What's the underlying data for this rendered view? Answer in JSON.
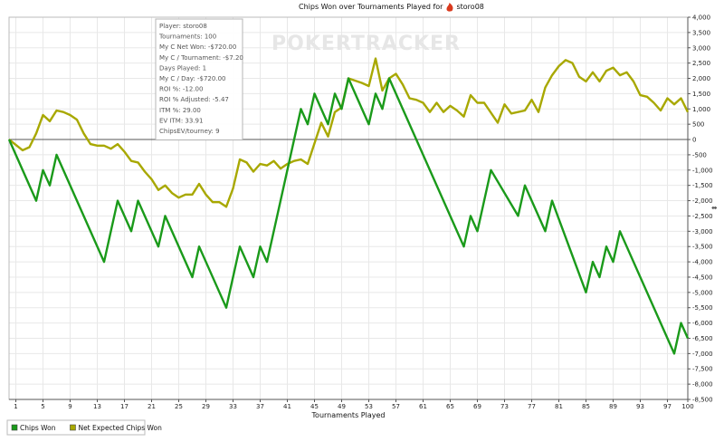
{
  "chart_data": {
    "type": "line",
    "title_prefix": "Chips Won over Tournaments Played for",
    "player": "storo08",
    "xlabel": "Tournaments Played",
    "ylabel": "",
    "xlim": [
      0,
      100
    ],
    "ylim": [
      -8500,
      4000
    ],
    "x_ticks": [
      1,
      5,
      9,
      13,
      17,
      21,
      25,
      29,
      33,
      37,
      41,
      45,
      49,
      53,
      57,
      61,
      65,
      69,
      73,
      77,
      81,
      85,
      89,
      93,
      97,
      100
    ],
    "y_ticks": [
      4000,
      3500,
      3000,
      2500,
      2000,
      1500,
      1000,
      500,
      0,
      -500,
      -1000,
      -1500,
      -2000,
      -2500,
      -3000,
      -3500,
      -4000,
      -4500,
      -5000,
      -5500,
      -6000,
      -6500,
      -7000,
      -7500,
      -8000,
      -8500
    ],
    "y_tick_labels": [
      "4,000",
      "3,500",
      "3,000",
      "2,500",
      "2,000",
      "1,500",
      "1,000",
      "500",
      "0",
      "-500",
      "-1,000",
      "-1,500",
      "-2,000",
      "-2,500",
      "-3,000",
      "-3,500",
      "-4,000",
      "-4,500",
      "-5,000",
      "-5,500",
      "-6,000",
      "-6,500",
      "-7,000",
      "-7,500",
      "-8,000",
      "-8,500"
    ],
    "grid": true,
    "legend_position": "bottom-left",
    "series": [
      {
        "name": "Chips Won",
        "color": "#1a9a1a",
        "points": [
          [
            0,
            0
          ],
          [
            4,
            -2000
          ],
          [
            5,
            -1000
          ],
          [
            6,
            -1500
          ],
          [
            7,
            -500
          ],
          [
            14,
            -4000
          ],
          [
            16,
            -2000
          ],
          [
            18,
            -3000
          ],
          [
            19,
            -2000
          ],
          [
            22,
            -3500
          ],
          [
            23,
            -2500
          ],
          [
            27,
            -4500
          ],
          [
            28,
            -3500
          ],
          [
            32,
            -5500
          ],
          [
            34,
            -3500
          ],
          [
            36,
            -4500
          ],
          [
            37,
            -3500
          ],
          [
            38,
            -4000
          ],
          [
            43,
            1000
          ],
          [
            44,
            500
          ],
          [
            45,
            1500
          ],
          [
            47,
            500
          ],
          [
            48,
            1500
          ],
          [
            49,
            1000
          ],
          [
            50,
            2000
          ],
          [
            53,
            500
          ],
          [
            54,
            1500
          ],
          [
            55,
            1000
          ],
          [
            56,
            2000
          ],
          [
            67,
            -3500
          ],
          [
            68,
            -2500
          ],
          [
            69,
            -3000
          ],
          [
            71,
            -1000
          ],
          [
            75,
            -2500
          ],
          [
            76,
            -1500
          ],
          [
            79,
            -3000
          ],
          [
            80,
            -2000
          ],
          [
            85,
            -5000
          ],
          [
            86,
            -4000
          ],
          [
            87,
            -4500
          ],
          [
            88,
            -3500
          ],
          [
            89,
            -4000
          ],
          [
            90,
            -3000
          ],
          [
            98,
            -7000
          ],
          [
            99,
            -6000
          ],
          [
            100,
            -6500
          ]
        ]
      },
      {
        "name": "Net Expected Chips Won",
        "color": "#a8a800",
        "points": [
          [
            0,
            0
          ],
          [
            2,
            -350
          ],
          [
            3,
            -250
          ],
          [
            4,
            200
          ],
          [
            5,
            800
          ],
          [
            6,
            600
          ],
          [
            7,
            950
          ],
          [
            8,
            900
          ],
          [
            9,
            800
          ],
          [
            10,
            650
          ],
          [
            11,
            200
          ],
          [
            12,
            -150
          ],
          [
            13,
            -200
          ],
          [
            14,
            -200
          ],
          [
            15,
            -300
          ],
          [
            16,
            -150
          ],
          [
            17,
            -400
          ],
          [
            18,
            -700
          ],
          [
            19,
            -750
          ],
          [
            20,
            -1050
          ],
          [
            21,
            -1300
          ],
          [
            22,
            -1650
          ],
          [
            23,
            -1500
          ],
          [
            24,
            -1750
          ],
          [
            25,
            -1900
          ],
          [
            26,
            -1800
          ],
          [
            27,
            -1800
          ],
          [
            28,
            -1450
          ],
          [
            29,
            -1800
          ],
          [
            30,
            -2050
          ],
          [
            31,
            -2050
          ],
          [
            32,
            -2200
          ],
          [
            33,
            -1600
          ],
          [
            34,
            -650
          ],
          [
            35,
            -750
          ],
          [
            36,
            -1050
          ],
          [
            37,
            -800
          ],
          [
            38,
            -850
          ],
          [
            39,
            -700
          ],
          [
            40,
            -950
          ],
          [
            41,
            -800
          ],
          [
            42,
            -700
          ],
          [
            43,
            -650
          ],
          [
            44,
            -800
          ],
          [
            46,
            550
          ],
          [
            47,
            100
          ],
          [
            48,
            900
          ],
          [
            49,
            1050
          ],
          [
            50,
            2000
          ],
          [
            52,
            1850
          ],
          [
            53,
            1750
          ],
          [
            54,
            2650
          ],
          [
            55,
            1600
          ],
          [
            56,
            2000
          ],
          [
            57,
            2150
          ],
          [
            58,
            1800
          ],
          [
            59,
            1350
          ],
          [
            60,
            1300
          ],
          [
            61,
            1200
          ],
          [
            62,
            900
          ],
          [
            63,
            1200
          ],
          [
            64,
            900
          ],
          [
            65,
            1100
          ],
          [
            66,
            950
          ],
          [
            67,
            750
          ],
          [
            68,
            1450
          ],
          [
            69,
            1200
          ],
          [
            70,
            1200
          ],
          [
            72,
            550
          ],
          [
            73,
            1150
          ],
          [
            74,
            850
          ],
          [
            76,
            950
          ],
          [
            77,
            1300
          ],
          [
            78,
            900
          ],
          [
            79,
            1700
          ],
          [
            80,
            2100
          ],
          [
            81,
            2400
          ],
          [
            82,
            2600
          ],
          [
            83,
            2500
          ],
          [
            84,
            2050
          ],
          [
            85,
            1900
          ],
          [
            86,
            2200
          ],
          [
            87,
            1900
          ],
          [
            88,
            2250
          ],
          [
            89,
            2350
          ],
          [
            90,
            2100
          ],
          [
            91,
            2200
          ],
          [
            92,
            1900
          ],
          [
            93,
            1450
          ],
          [
            94,
            1400
          ],
          [
            95,
            1200
          ],
          [
            96,
            950
          ],
          [
            97,
            1350
          ],
          [
            98,
            1150
          ],
          [
            99,
            1350
          ],
          [
            100,
            900
          ]
        ]
      }
    ]
  },
  "watermark": "POKERTRACKER",
  "tooltip": {
    "lines": [
      "Player: storo08",
      "Tournaments: 100",
      "My C Net Won: -$720.00",
      "My C / Tournament: -$7.20",
      "Days Played: 1",
      "My C / Day: -$720.00",
      "ROI %: -12.00",
      "ROI % Adjusted: -5.47",
      "ITM %: 29.00",
      "EV ITM: 33.91",
      "ChipsEV/tourney: 9"
    ]
  },
  "legend": {
    "items": [
      {
        "label": "Chips Won",
        "color": "#1a9a1a"
      },
      {
        "label": "Net Expected Chips Won",
        "color": "#a8a800"
      }
    ]
  },
  "colors": {
    "grid": "#e8e8e8",
    "axis": "#555555",
    "zero_line": "#555555",
    "tooltip_border": "#b5b5b5",
    "flame": "#d93a1e"
  },
  "icons": {
    "title_icon": "flame-icon"
  }
}
